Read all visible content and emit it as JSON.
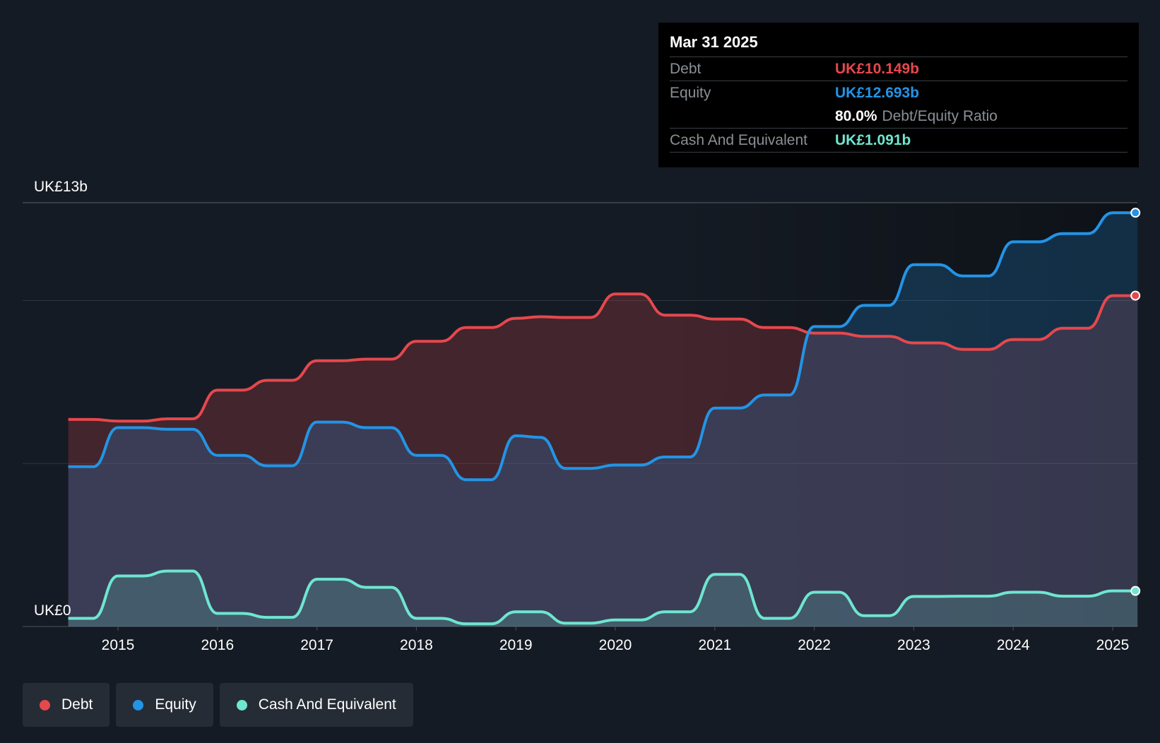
{
  "tooltip": {
    "date": "Mar 31 2025",
    "debt_label": "Debt",
    "debt_value": "UK£10.149b",
    "equity_label": "Equity",
    "equity_value": "UK£12.693b",
    "ratio_value": "80.0%",
    "ratio_label": "Debt/Equity Ratio",
    "cash_label": "Cash And Equivalent",
    "cash_value": "UK£1.091b"
  },
  "legend": {
    "debt": "Debt",
    "equity": "Equity",
    "cash": "Cash And Equivalent"
  },
  "colors": {
    "debt": "#e5484d",
    "equity": "#2394e6",
    "cash": "#6ee6d0",
    "background": "#151b24"
  },
  "chart_data": {
    "type": "area",
    "title": "",
    "xlabel": "",
    "ylabel": "",
    "y_top_label": "UK£13b",
    "y_bottom_label": "UK£0",
    "ylim": [
      0,
      13
    ],
    "xlim": [
      2014.5,
      2025.25
    ],
    "x_ticks": [
      "2015",
      "2016",
      "2017",
      "2018",
      "2019",
      "2020",
      "2021",
      "2022",
      "2023",
      "2024",
      "2025"
    ],
    "series": [
      {
        "name": "Debt",
        "key": "debt",
        "points": [
          [
            2014.5,
            6.35
          ],
          [
            2014.75,
            6.35
          ],
          [
            2015.0,
            6.3
          ],
          [
            2015.25,
            6.3
          ],
          [
            2015.5,
            6.37
          ],
          [
            2015.75,
            6.37
          ],
          [
            2016.0,
            7.25
          ],
          [
            2016.25,
            7.25
          ],
          [
            2016.5,
            7.55
          ],
          [
            2016.75,
            7.55
          ],
          [
            2017.0,
            8.15
          ],
          [
            2017.25,
            8.15
          ],
          [
            2017.5,
            8.2
          ],
          [
            2017.75,
            8.2
          ],
          [
            2018.0,
            8.75
          ],
          [
            2018.25,
            8.75
          ],
          [
            2018.5,
            9.17
          ],
          [
            2018.75,
            9.17
          ],
          [
            2019.0,
            9.45
          ],
          [
            2019.25,
            9.5
          ],
          [
            2019.5,
            9.48
          ],
          [
            2019.75,
            9.48
          ],
          [
            2020.0,
            10.2
          ],
          [
            2020.25,
            10.2
          ],
          [
            2020.5,
            9.55
          ],
          [
            2020.75,
            9.55
          ],
          [
            2021.0,
            9.43
          ],
          [
            2021.25,
            9.43
          ],
          [
            2021.5,
            9.17
          ],
          [
            2021.75,
            9.17
          ],
          [
            2022.0,
            9.0
          ],
          [
            2022.25,
            9.0
          ],
          [
            2022.5,
            8.9
          ],
          [
            2022.75,
            8.9
          ],
          [
            2023.0,
            8.7
          ],
          [
            2023.25,
            8.7
          ],
          [
            2023.5,
            8.5
          ],
          [
            2023.75,
            8.5
          ],
          [
            2024.0,
            8.8
          ],
          [
            2024.25,
            8.8
          ],
          [
            2024.5,
            9.15
          ],
          [
            2024.75,
            9.15
          ],
          [
            2025.0,
            10.149
          ],
          [
            2025.25,
            10.149
          ]
        ]
      },
      {
        "name": "Equity",
        "key": "equity",
        "points": [
          [
            2014.5,
            4.9
          ],
          [
            2014.75,
            4.9
          ],
          [
            2015.0,
            6.1
          ],
          [
            2015.25,
            6.1
          ],
          [
            2015.5,
            6.05
          ],
          [
            2015.75,
            6.05
          ],
          [
            2016.0,
            5.25
          ],
          [
            2016.25,
            5.25
          ],
          [
            2016.5,
            4.93
          ],
          [
            2016.75,
            4.93
          ],
          [
            2017.0,
            6.27
          ],
          [
            2017.25,
            6.27
          ],
          [
            2017.5,
            6.1
          ],
          [
            2017.75,
            6.1
          ],
          [
            2018.0,
            5.25
          ],
          [
            2018.25,
            5.25
          ],
          [
            2018.5,
            4.5
          ],
          [
            2018.75,
            4.5
          ],
          [
            2019.0,
            5.85
          ],
          [
            2019.25,
            5.8
          ],
          [
            2019.5,
            4.85
          ],
          [
            2019.75,
            4.85
          ],
          [
            2020.0,
            4.95
          ],
          [
            2020.25,
            4.95
          ],
          [
            2020.5,
            5.2
          ],
          [
            2020.75,
            5.2
          ],
          [
            2021.0,
            6.7
          ],
          [
            2021.25,
            6.7
          ],
          [
            2021.5,
            7.1
          ],
          [
            2021.75,
            7.1
          ],
          [
            2022.0,
            9.2
          ],
          [
            2022.25,
            9.2
          ],
          [
            2022.5,
            9.85
          ],
          [
            2022.75,
            9.85
          ],
          [
            2023.0,
            11.1
          ],
          [
            2023.25,
            11.1
          ],
          [
            2023.5,
            10.75
          ],
          [
            2023.75,
            10.75
          ],
          [
            2024.0,
            11.8
          ],
          [
            2024.25,
            11.8
          ],
          [
            2024.5,
            12.05
          ],
          [
            2024.75,
            12.05
          ],
          [
            2025.0,
            12.693
          ],
          [
            2025.25,
            12.693
          ]
        ]
      },
      {
        "name": "Cash And Equivalent",
        "key": "cash",
        "points": [
          [
            2014.5,
            0.25
          ],
          [
            2014.75,
            0.25
          ],
          [
            2015.0,
            1.55
          ],
          [
            2015.25,
            1.55
          ],
          [
            2015.5,
            1.7
          ],
          [
            2015.75,
            1.7
          ],
          [
            2016.0,
            0.4
          ],
          [
            2016.25,
            0.4
          ],
          [
            2016.5,
            0.28
          ],
          [
            2016.75,
            0.28
          ],
          [
            2017.0,
            1.45
          ],
          [
            2017.25,
            1.45
          ],
          [
            2017.5,
            1.2
          ],
          [
            2017.75,
            1.2
          ],
          [
            2018.0,
            0.25
          ],
          [
            2018.25,
            0.25
          ],
          [
            2018.5,
            0.08
          ],
          [
            2018.75,
            0.08
          ],
          [
            2019.0,
            0.45
          ],
          [
            2019.25,
            0.45
          ],
          [
            2019.5,
            0.1
          ],
          [
            2019.75,
            0.1
          ],
          [
            2020.0,
            0.2
          ],
          [
            2020.25,
            0.2
          ],
          [
            2020.5,
            0.45
          ],
          [
            2020.75,
            0.45
          ],
          [
            2021.0,
            1.6
          ],
          [
            2021.25,
            1.6
          ],
          [
            2021.5,
            0.25
          ],
          [
            2021.75,
            0.25
          ],
          [
            2022.0,
            1.05
          ],
          [
            2022.25,
            1.05
          ],
          [
            2022.5,
            0.33
          ],
          [
            2022.75,
            0.33
          ],
          [
            2023.0,
            0.92
          ],
          [
            2023.25,
            0.92
          ],
          [
            2023.5,
            0.93
          ],
          [
            2023.75,
            0.93
          ],
          [
            2024.0,
            1.05
          ],
          [
            2024.25,
            1.05
          ],
          [
            2024.5,
            0.93
          ],
          [
            2024.75,
            0.93
          ],
          [
            2025.0,
            1.091
          ],
          [
            2025.25,
            1.091
          ]
        ]
      }
    ]
  }
}
